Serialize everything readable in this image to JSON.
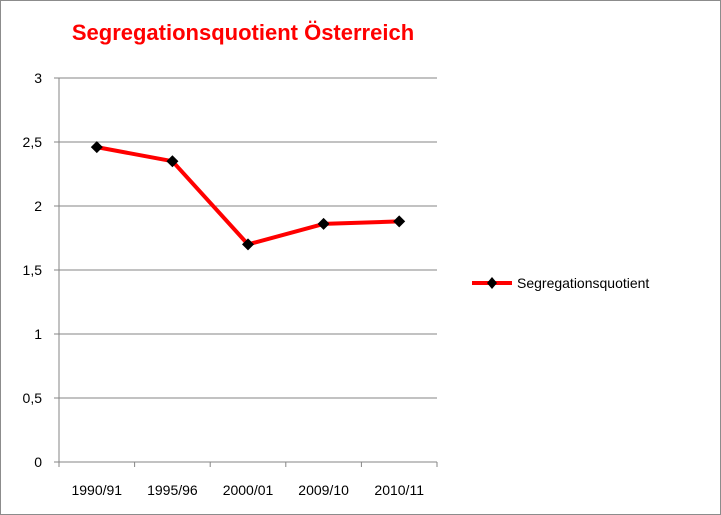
{
  "chart_data": {
    "type": "line",
    "title": "Segregationsquotient Österreich",
    "categories": [
      "1990/91",
      "1995/96",
      "2000/01",
      "2009/10",
      "2010/11"
    ],
    "series": [
      {
        "name": "Segregationsquotient",
        "values": [
          2.46,
          2.35,
          1.7,
          1.86,
          1.88
        ]
      }
    ],
    "ylim": [
      0,
      3
    ],
    "yticks": [
      "0",
      "0,5",
      "1",
      "1,5",
      "2",
      "2,5",
      "3"
    ],
    "grid": true,
    "legend_position": "right",
    "colors": {
      "title": "#ff0000",
      "line": "#ff0000",
      "marker": "#000000",
      "grid": "#868686"
    }
  }
}
